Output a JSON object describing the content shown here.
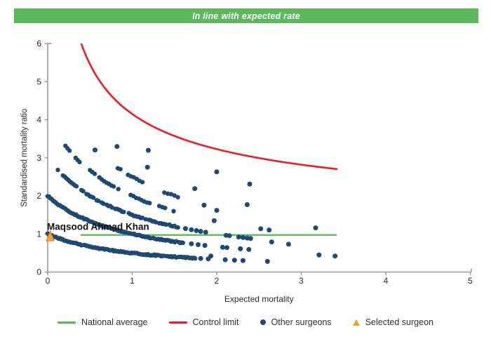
{
  "banner": {
    "text": "In line with expected rate",
    "bg": "#5cb85c",
    "fg": "#ffffff"
  },
  "colors": {
    "points": "#1f4973",
    "control_limit": "#ed1c24",
    "national_average": "#56b94f",
    "selected": "#f6a02d",
    "selected_stroke": "#d2801e",
    "axis": "#9a9a9a",
    "text": "#2b2b2b"
  },
  "legend": {
    "items": [
      {
        "label": "National average",
        "type": "line",
        "color": "#56b94f"
      },
      {
        "label": "Control limit",
        "type": "line",
        "color": "#ed1c24"
      },
      {
        "label": "Other surgeons",
        "type": "dot",
        "color": "#1f4973"
      },
      {
        "label": "Selected surgeon",
        "type": "triangle",
        "color": "#f6a02d"
      }
    ]
  },
  "chart_data": {
    "type": "scatter",
    "title": "In line with expected rate",
    "xlabel": "Expected mortality",
    "ylabel": "Standardised mortality ratio",
    "xlim": [
      0,
      5
    ],
    "ylim": [
      0,
      6
    ],
    "x_ticks": [
      "0",
      "1",
      "2",
      "3",
      "4",
      "5"
    ],
    "y_ticks": [
      "0",
      "1",
      "2",
      "3",
      "4",
      "5",
      "6"
    ],
    "grid": "off",
    "legend_position": "bottom",
    "national_average": {
      "y": 1,
      "x_start": 0.39,
      "x_end": 3.42
    },
    "control_limit": {
      "formula": "y = offset + coef / sqrt(x)",
      "offset": 1,
      "coef": 3.15,
      "x_start": 0.4,
      "x_end": 3.43
    },
    "selected_surgeon": {
      "name": "Maqsood Ahmad Khan",
      "x": 0.03,
      "y": 0.95,
      "label_x": 0.0,
      "label_y": 1.18
    },
    "surgeon_bands": [
      {
        "deaths": 1,
        "curve": "y = 1/(1+x)",
        "segments": [
          [
            0.0,
            1.75,
            0.016
          ]
        ],
        "dots": [
          1.81,
          1.9,
          2.1,
          2.21,
          2.31,
          2.6
        ],
        "gap": 0.02
      },
      {
        "deaths": 2,
        "curve": "y = 2/(1+x)",
        "segments": [
          [
            0.0,
            1.6,
            0.016
          ]
        ],
        "dots": [
          1.7,
          1.78,
          1.86,
          2.07,
          2.12,
          2.28,
          2.38
        ],
        "gap": 0.03
      },
      {
        "deaths": 3,
        "curve": "y = 3/(1+x)",
        "segments": [
          [
            0.12,
            1.55,
            0.02
          ]
        ],
        "dots": [
          1.63,
          1.7,
          1.76,
          1.81,
          1.87,
          2.11,
          2.15,
          2.26,
          2.31,
          2.36,
          2.4
        ],
        "gap": 0.22
      },
      {
        "deaths": 4,
        "curve": "y = 4/(1+x)",
        "segments": [
          [
            0.21,
            0.4,
            0.024
          ],
          [
            0.5,
            0.86,
            0.028
          ],
          [
            0.95,
            1.22,
            0.032
          ],
          [
            1.32,
            1.52,
            0.034
          ]
        ],
        "dots": [
          1.97,
          2.52,
          2.62
        ],
        "gap": 0.12
      },
      {
        "deaths": 5,
        "curve": "y = 5/(1+x)",
        "segments": [
          [
            0.8,
            0.87,
            0.03
          ],
          [
            0.95,
            1.12,
            0.034
          ],
          [
            1.38,
            1.56,
            0.04
          ]
        ],
        "dots": [
          0.56,
          1.85
        ],
        "gap": 0.1
      },
      {
        "deaths": 6,
        "curve": "y = 6/(1+x)",
        "segments": [],
        "dots": [
          0.82,
          1.18,
          1.74
        ],
        "gap": 0
      },
      {
        "deaths": 7,
        "curve": "y = 7/(1+x)",
        "segments": [],
        "dots": [
          1.19
        ],
        "gap": 0
      }
    ],
    "scatter_points": [
      [
        2.0,
        2.63
      ],
      [
        2.39,
        2.31
      ],
      [
        2.36,
        1.77
      ],
      [
        2.0,
        1.62
      ],
      [
        3.17,
        1.16
      ],
      [
        2.65,
        0.79
      ],
      [
        2.85,
        0.73
      ],
      [
        1.93,
        0.42
      ],
      [
        3.21,
        0.45
      ],
      [
        3.4,
        0.42
      ]
    ]
  }
}
